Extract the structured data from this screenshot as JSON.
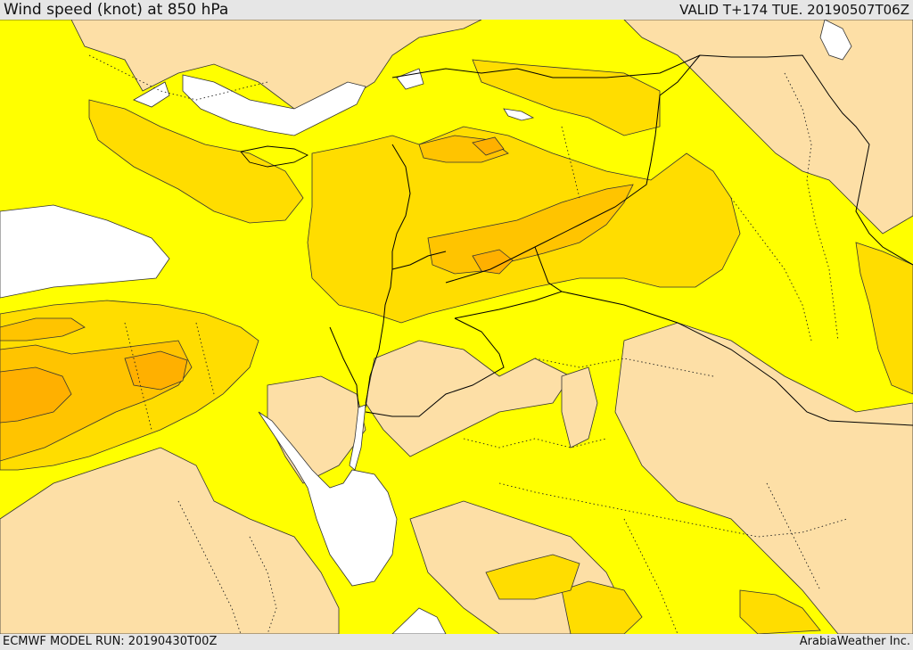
{
  "header": {
    "title": "Wind speed (knot) at 850 hPa",
    "valid_time": "VALID T+174 TUE. 20190507T06Z"
  },
  "footer": {
    "model_run": "ECMWF MODEL RUN: 20190430T00Z",
    "credit": "ArabiaWeather Inc."
  },
  "map": {
    "palette": {
      "calm": "#ffffff",
      "light": "#fddfa6",
      "moderate": "#ffff00",
      "fresh": "#ffdd00",
      "strong": "#ffc400",
      "very_strong": "#ffb000",
      "sea": "#ffffff"
    }
  }
}
